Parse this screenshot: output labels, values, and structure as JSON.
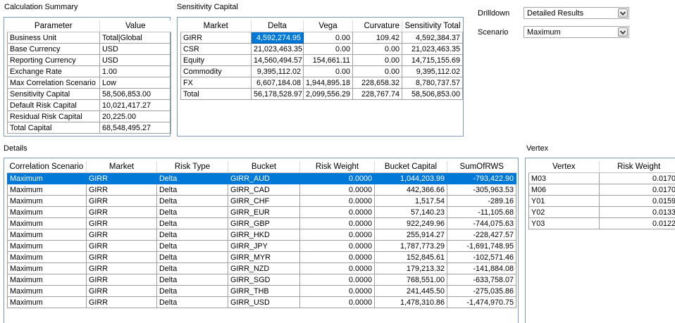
{
  "summary": {
    "title": "Calculation Summary",
    "headers": [
      "Parameter",
      "Value"
    ],
    "rows": [
      [
        "Business Unit",
        "Total|Global"
      ],
      [
        "Base Currency",
        "USD"
      ],
      [
        "Reporting Currency",
        "USD"
      ],
      [
        "Exchange Rate",
        "1.00"
      ],
      [
        "Max Correlation Scenario",
        "Low"
      ],
      [
        "Sensitivity Capital",
        "58,506,853.00"
      ],
      [
        "Default Risk Capital",
        "10,021,417.27"
      ],
      [
        "Residual Risk Capital",
        "20,225.00"
      ],
      [
        "Total Capital",
        "68,548,495.27"
      ]
    ]
  },
  "sensitivity": {
    "title": "Sensitivity Capital",
    "headers": [
      "Market",
      "Delta",
      "Vega",
      "Curvature",
      "Sensitivity Total"
    ],
    "rows": [
      [
        "GIRR",
        "4,592,274.95",
        "0.00",
        "109.42",
        "4,592,384.37"
      ],
      [
        "CSR",
        "21,023,463.35",
        "0.00",
        "0.00",
        "21,023,463.35"
      ],
      [
        "Equity",
        "14,560,494.57",
        "154,661.11",
        "0.00",
        "14,715,155.69"
      ],
      [
        "Commodity",
        "9,395,112.02",
        "0.00",
        "0.00",
        "9,395,112.02"
      ],
      [
        "FX",
        "6,607,184.08",
        "1,944,895.18",
        "228,658.32",
        "8,780,737.57"
      ],
      [
        "Total",
        "56,178,528.97",
        "2,099,556.29",
        "228,767.74",
        "58,506,853.00"
      ]
    ]
  },
  "controls": {
    "drilldown_label": "Drilldown",
    "drilldown_value": "Detailed Results",
    "scenario_label": "Scenario",
    "scenario_value": "Maximum"
  },
  "details": {
    "title": "Details",
    "headers": [
      "Correlation Scenario",
      "Market",
      "Risk Type",
      "Bucket",
      "Risk Weight",
      "Bucket Capital",
      "SumOfRWS"
    ],
    "rows": [
      [
        "Maximum",
        "GIRR",
        "Delta",
        "GIRR_AUD",
        "0.0000",
        "1,044,203.99",
        "-793,422.90"
      ],
      [
        "Maximum",
        "GIRR",
        "Delta",
        "GIRR_CAD",
        "0.0000",
        "442,366.66",
        "-305,963.53"
      ],
      [
        "Maximum",
        "GIRR",
        "Delta",
        "GIRR_CHF",
        "0.0000",
        "1,517.54",
        "-289.16"
      ],
      [
        "Maximum",
        "GIRR",
        "Delta",
        "GIRR_EUR",
        "0.0000",
        "57,140.23",
        "-11,105.68"
      ],
      [
        "Maximum",
        "GIRR",
        "Delta",
        "GIRR_GBP",
        "0.0000",
        "922,249.96",
        "-744,075.63"
      ],
      [
        "Maximum",
        "GIRR",
        "Delta",
        "GIRR_HKD",
        "0.0000",
        "255,914.27",
        "-228,427.57"
      ],
      [
        "Maximum",
        "GIRR",
        "Delta",
        "GIRR_JPY",
        "0.0000",
        "1,787,773.29",
        "-1,691,748.95"
      ],
      [
        "Maximum",
        "GIRR",
        "Delta",
        "GIRR_MYR",
        "0.0000",
        "152,845.61",
        "-102,571.46"
      ],
      [
        "Maximum",
        "GIRR",
        "Delta",
        "GIRR_NZD",
        "0.0000",
        "179,213.32",
        "-141,884.08"
      ],
      [
        "Maximum",
        "GIRR",
        "Delta",
        "GIRR_SGD",
        "0.0000",
        "768,551.00",
        "-633,758.07"
      ],
      [
        "Maximum",
        "GIRR",
        "Delta",
        "GIRR_THB",
        "0.0000",
        "241,445.50",
        "-275,035.86"
      ],
      [
        "Maximum",
        "GIRR",
        "Delta",
        "GIRR_USD",
        "0.0000",
        "1,478,310.86",
        "-1,474,970.75"
      ]
    ]
  },
  "vertex": {
    "title": "Vertex",
    "headers": [
      "Vertex",
      "Risk Weight"
    ],
    "rows": [
      [
        "M03",
        "0.0170"
      ],
      [
        "M06",
        "0.0170"
      ],
      [
        "Y01",
        "0.0159"
      ],
      [
        "Y02",
        "0.0133"
      ],
      [
        "Y03",
        "0.0122"
      ]
    ]
  },
  "colors": {
    "selection": "#0078d7",
    "panel_border": "#7a9ab6",
    "grid_line": "#a0a0a0"
  }
}
